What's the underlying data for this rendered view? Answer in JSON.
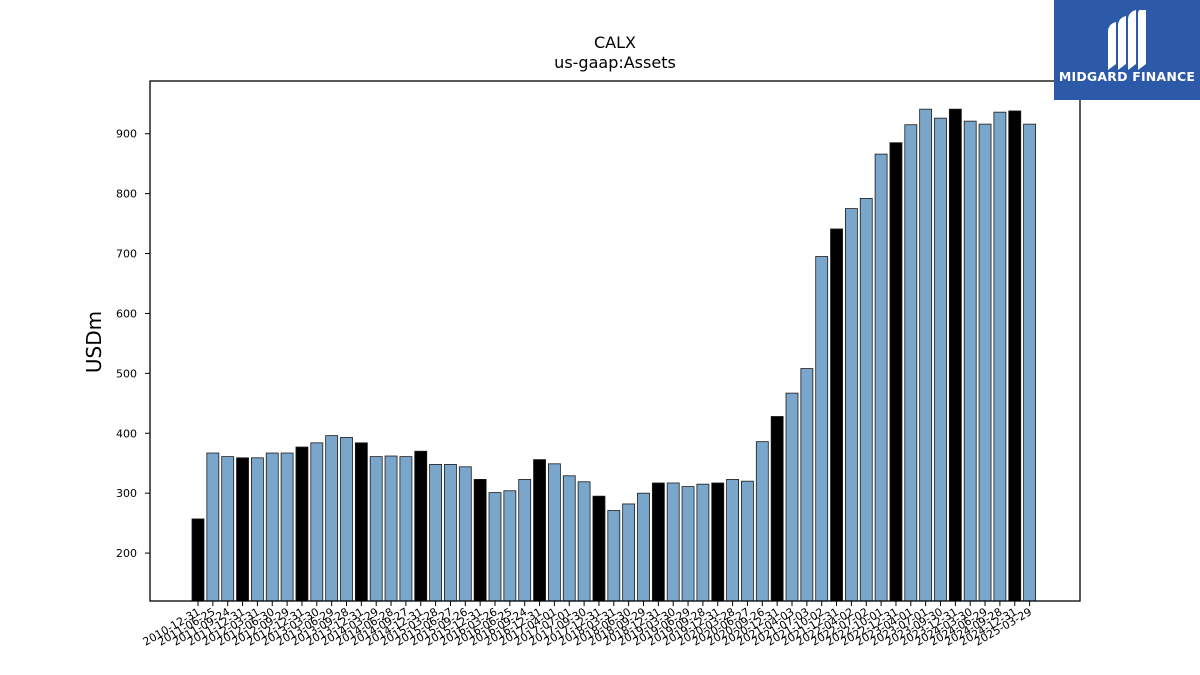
{
  "logo": {
    "text": "MIDGARD FINANCE"
  },
  "chart_data": {
    "type": "bar",
    "title": "CALX",
    "subtitle": "us-gaap:Assets",
    "xlabel": "",
    "ylabel": "USDm",
    "ylim": [
      120,
      988
    ],
    "yticks": [
      200,
      300,
      400,
      500,
      600,
      700,
      800,
      900
    ],
    "grid": false,
    "colors": {
      "annual": "#000000",
      "quarterly": "#7aa6cc",
      "edge": "#1a1a1a"
    },
    "categories": [
      "2010-12-31",
      "2011-06-25",
      "2011-09-24",
      "2011-12-31",
      "2012-03-31",
      "2012-06-30",
      "2012-09-29",
      "2012-12-31",
      "2013-03-30",
      "2013-06-29",
      "2013-09-28",
      "2013-12-31",
      "2014-03-29",
      "2014-06-28",
      "2014-09-27",
      "2014-12-31",
      "2015-03-28",
      "2015-06-27",
      "2015-09-26",
      "2015-12-31",
      "2016-03-26",
      "2016-06-25",
      "2016-09-24",
      "2016-12-31",
      "2017-04-01",
      "2017-07-01",
      "2017-09-30",
      "2017-12-31",
      "2018-03-31",
      "2018-06-30",
      "2018-09-29",
      "2018-12-31",
      "2019-03-30",
      "2019-06-29",
      "2019-09-28",
      "2019-12-31",
      "2020-03-28",
      "2020-06-27",
      "2020-09-26",
      "2020-12-31",
      "2021-04-03",
      "2021-07-03",
      "2021-10-02",
      "2021-12-31",
      "2022-04-02",
      "2022-07-02",
      "2022-10-01",
      "2022-12-31",
      "2023-04-01",
      "2023-07-01",
      "2023-09-30",
      "2023-12-31",
      "2024-03-30",
      "2024-06-29",
      "2024-09-28",
      "2024-12-31",
      "2025-03-29"
    ],
    "values": [
      257,
      367,
      361,
      359,
      359,
      367,
      367,
      377,
      384,
      396,
      393,
      384,
      361,
      362,
      361,
      370,
      348,
      348,
      344,
      323,
      301,
      304,
      323,
      356,
      349,
      329,
      319,
      295,
      271,
      282,
      300,
      317,
      317,
      311,
      315,
      317,
      323,
      320,
      386,
      428,
      467,
      508,
      695,
      741,
      775,
      792,
      866,
      885,
      915,
      941,
      926,
      941,
      921,
      916,
      936,
      938,
      916
    ],
    "annual": [
      true,
      false,
      false,
      true,
      false,
      false,
      false,
      true,
      false,
      false,
      false,
      true,
      false,
      false,
      false,
      true,
      false,
      false,
      false,
      true,
      false,
      false,
      false,
      true,
      false,
      false,
      false,
      true,
      false,
      false,
      false,
      true,
      false,
      false,
      false,
      true,
      false,
      false,
      false,
      true,
      false,
      false,
      false,
      true,
      false,
      false,
      false,
      true,
      false,
      false,
      false,
      true,
      false,
      false,
      false,
      true,
      false
    ]
  }
}
